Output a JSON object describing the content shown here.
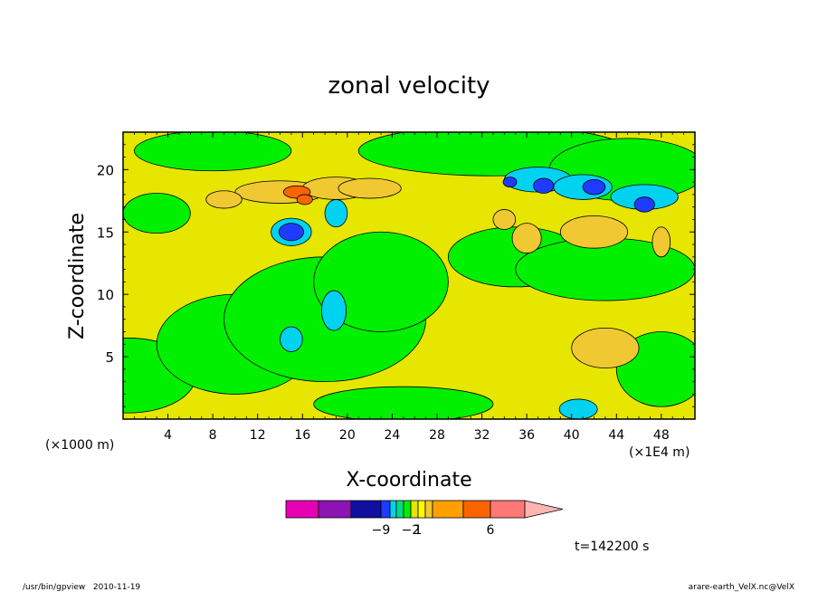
{
  "chart_data": {
    "type": "heatmap",
    "title": "zonal velocity",
    "xlabel": "X-coordinate",
    "ylabel": "Z-coordinate",
    "x_unit_label": "(×1E4 m)",
    "y_unit_label": "(×1000 m)",
    "xlim": [
      0,
      51
    ],
    "ylim": [
      0,
      23
    ],
    "x_ticks": [
      4,
      8,
      12,
      16,
      20,
      24,
      28,
      32,
      36,
      40,
      44,
      48
    ],
    "x_tick_labels": [
      "4",
      "8",
      "12",
      "16",
      "20",
      "24",
      "28",
      "32",
      "36",
      "40",
      "44",
      "48"
    ],
    "y_ticks": [
      5,
      10,
      15,
      20
    ],
    "y_tick_labels": [
      "5",
      "10",
      "15",
      "20"
    ],
    "grid": false,
    "colorbar": {
      "colors": [
        "#e600b4",
        "#8c14b4",
        "#0f0fa0",
        "#1e3cff",
        "#00d2f0",
        "#00dc82",
        "#00f000",
        "#e6e600",
        "#fffa00",
        "#f0c832",
        "#ffa000",
        "#fa6400",
        "#ff1e1e",
        "#ff7878",
        "#ffb4b4"
      ],
      "labels": [
        {
          "text": "−9",
          "index": 2
        },
        {
          "text": "−2",
          "index": 6
        },
        {
          "text": "1",
          "index": 7
        },
        {
          "text": "6",
          "index": 11
        }
      ]
    },
    "regions": {
      "background": "#e6e600",
      "green_bands": [
        {
          "x": 0.5,
          "z": 3.5,
          "rx": 6,
          "ry": 3
        },
        {
          "x": 10,
          "z": 6,
          "rx": 7,
          "ry": 4
        },
        {
          "x": 18,
          "z": 8,
          "rx": 9,
          "ry": 5
        },
        {
          "x": 23,
          "z": 11,
          "rx": 6,
          "ry": 4
        },
        {
          "x": 8,
          "z": 21.5,
          "rx": 7,
          "ry": 1.6
        },
        {
          "x": 33,
          "z": 21.5,
          "rx": 12,
          "ry": 2
        },
        {
          "x": 45,
          "z": 20,
          "rx": 7,
          "ry": 2.5
        },
        {
          "x": 35,
          "z": 13,
          "rx": 6,
          "ry": 2.4
        },
        {
          "x": 43,
          "z": 12,
          "rx": 8,
          "ry": 2.5
        },
        {
          "x": 48,
          "z": 4,
          "rx": 4,
          "ry": 3
        },
        {
          "x": 25,
          "z": 1.2,
          "rx": 8,
          "ry": 1.4
        },
        {
          "x": 3,
          "z": 16.5,
          "rx": 3,
          "ry": 1.6
        }
      ],
      "orange_cells": [
        {
          "x": 14,
          "z": 18.2,
          "rx": 4,
          "ry": 0.9
        },
        {
          "x": 19,
          "z": 18.5,
          "rx": 3,
          "ry": 0.9
        },
        {
          "x": 22,
          "z": 18.5,
          "rx": 2.8,
          "ry": 0.8
        },
        {
          "x": 9,
          "z": 17.6,
          "rx": 1.6,
          "ry": 0.7
        },
        {
          "x": 42,
          "z": 15,
          "rx": 3,
          "ry": 1.3
        },
        {
          "x": 43,
          "z": 5.7,
          "rx": 3,
          "ry": 1.6
        },
        {
          "x": 36,
          "z": 14.5,
          "rx": 1.3,
          "ry": 1.2
        },
        {
          "x": 34,
          "z": 16,
          "rx": 1,
          "ry": 0.8
        },
        {
          "x": 48,
          "z": 14.2,
          "rx": 0.8,
          "ry": 1.2
        }
      ],
      "red_cells": [
        {
          "x": 15.5,
          "z": 18.2,
          "rx": 1.2,
          "ry": 0.5
        },
        {
          "x": 16.2,
          "z": 17.6,
          "rx": 0.7,
          "ry": 0.4
        }
      ],
      "cyan_cells": [
        {
          "x": 37,
          "z": 19.2,
          "rx": 3,
          "ry": 1
        },
        {
          "x": 41,
          "z": 18.6,
          "rx": 2.6,
          "ry": 1
        },
        {
          "x": 46.5,
          "z": 17.8,
          "rx": 3,
          "ry": 1
        },
        {
          "x": 15,
          "z": 15,
          "rx": 1.8,
          "ry": 1.1
        },
        {
          "x": 19,
          "z": 16.5,
          "rx": 1,
          "ry": 1.1
        },
        {
          "x": 18.8,
          "z": 8.7,
          "rx": 1.1,
          "ry": 1.6
        },
        {
          "x": 15,
          "z": 6.4,
          "rx": 1,
          "ry": 1
        },
        {
          "x": 40.6,
          "z": 0.8,
          "rx": 1.7,
          "ry": 0.8
        }
      ],
      "blue_cells": [
        {
          "x": 15,
          "z": 15,
          "rx": 1.1,
          "ry": 0.7
        },
        {
          "x": 37.5,
          "z": 18.7,
          "rx": 0.9,
          "ry": 0.6
        },
        {
          "x": 42,
          "z": 18.6,
          "rx": 1,
          "ry": 0.6
        },
        {
          "x": 46.5,
          "z": 17.2,
          "rx": 0.9,
          "ry": 0.6
        },
        {
          "x": 34.5,
          "z": 19,
          "rx": 0.6,
          "ry": 0.4
        }
      ]
    }
  },
  "footer": {
    "time_label": "t=142200 s",
    "left_note": "/usr/bin/gpview   2010-11-19",
    "right_note": "arare-earth_VelX.nc@VelX"
  }
}
